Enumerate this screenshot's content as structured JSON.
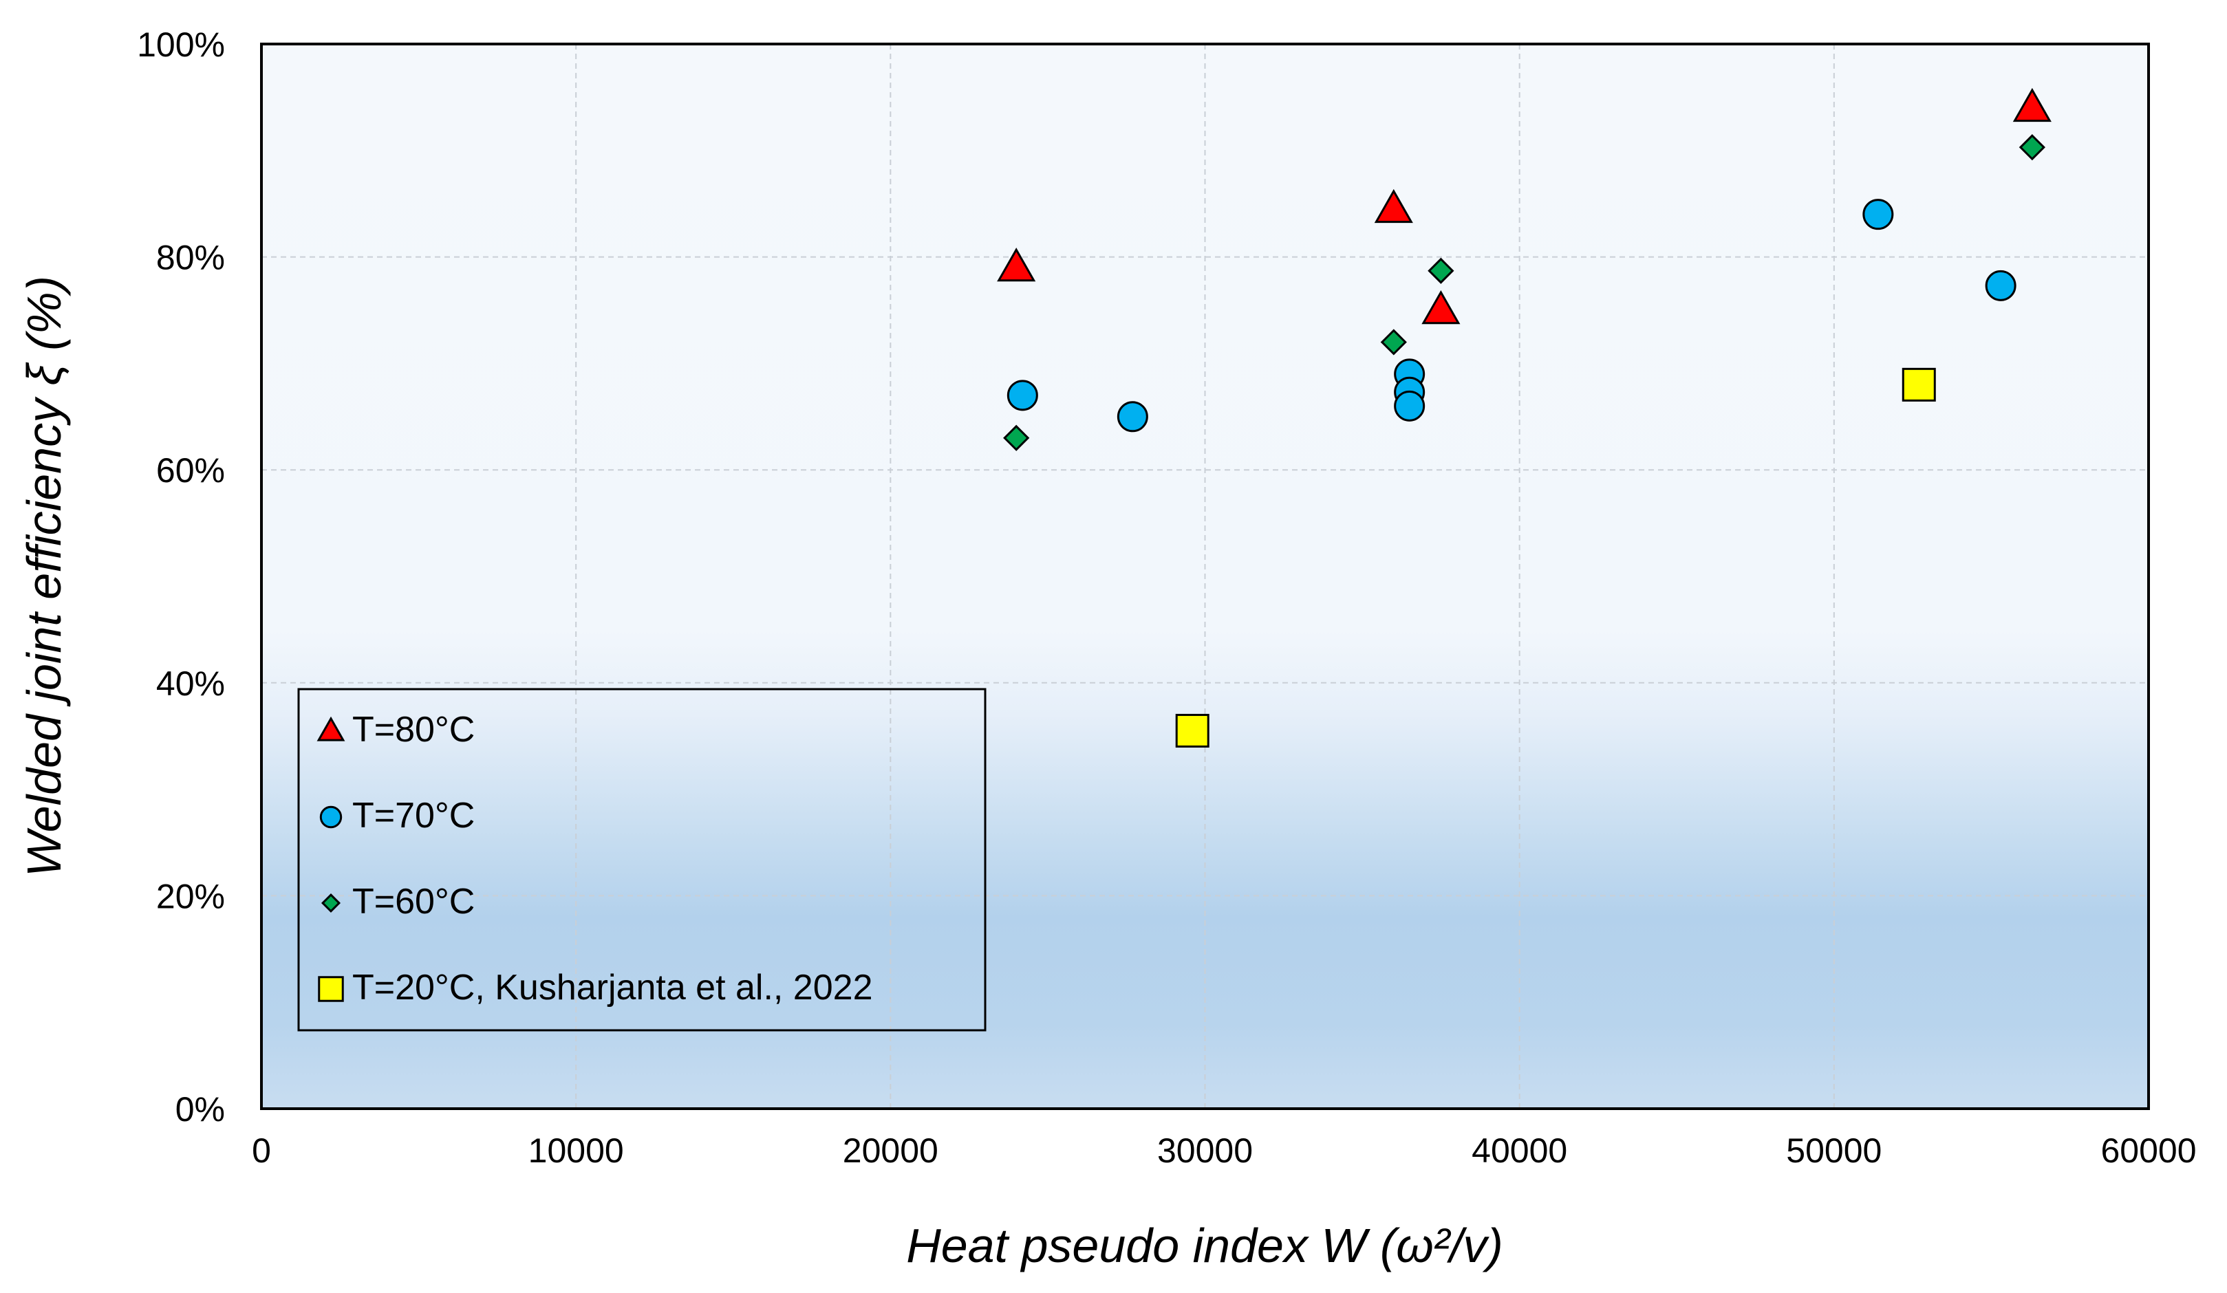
{
  "chart_data": {
    "type": "scatter",
    "title": "",
    "xlabel": "Heat pseudo index W (ω²/v)",
    "ylabel": "Welded joint efficiency ξ (%)",
    "xlim": [
      0,
      60000
    ],
    "ylim": [
      0,
      100
    ],
    "xticks": [
      0,
      10000,
      20000,
      30000,
      40000,
      50000,
      60000
    ],
    "xtick_labels": [
      "0",
      "10000",
      "20000",
      "30000",
      "40000",
      "50000",
      "60000"
    ],
    "yticks": [
      0,
      20,
      40,
      60,
      80,
      100
    ],
    "ytick_labels": [
      "0%",
      "20%",
      "40%",
      "60%",
      "80%",
      "100%"
    ],
    "grid": true,
    "legend_position": "bottom-left",
    "series": [
      {
        "name": "T=80°C",
        "marker": "triangle",
        "color": "#ff0000",
        "points": [
          [
            24000,
            79
          ],
          [
            36000,
            84.5
          ],
          [
            37500,
            75
          ],
          [
            56300,
            94
          ]
        ]
      },
      {
        "name": "T=70°C",
        "marker": "circle",
        "color": "#00b0f0",
        "points": [
          [
            24200,
            67
          ],
          [
            27700,
            65
          ],
          [
            36500,
            69
          ],
          [
            36500,
            67.3
          ],
          [
            36500,
            66
          ],
          [
            51400,
            84
          ],
          [
            55300,
            77.3
          ]
        ]
      },
      {
        "name": "T=60°C",
        "marker": "diamond",
        "color": "#00a650",
        "points": [
          [
            24000,
            63
          ],
          [
            36000,
            72
          ],
          [
            37500,
            78.7
          ],
          [
            56300,
            90.3
          ]
        ]
      },
      {
        "name": "T=20°C, Kusharjanta et al., 2022",
        "marker": "square",
        "color": "#ffff00",
        "points": [
          [
            29600,
            35.5
          ],
          [
            52700,
            68
          ]
        ]
      }
    ]
  }
}
